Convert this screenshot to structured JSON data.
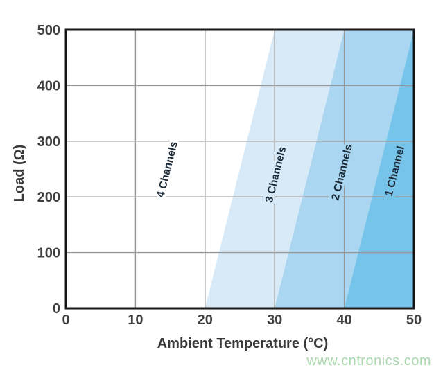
{
  "watermark": {
    "text": "www.cntronics.com",
    "color": "#a9d8ae"
  },
  "chart_data": {
    "type": "area",
    "title": "",
    "xlabel": "Ambient Temperature (°C)",
    "ylabel": "Load (Ω)",
    "xlim": [
      0,
      50
    ],
    "ylim": [
      0,
      500
    ],
    "xticks": [
      0,
      10,
      20,
      30,
      40,
      50
    ],
    "yticks": [
      0,
      100,
      200,
      300,
      400,
      500
    ],
    "grid": true,
    "legend_position": "none",
    "region_label_rotation_deg": -76,
    "regions": [
      {
        "label": "4 Channels",
        "fill": "#ffffff",
        "x_at_bottom": [
          0,
          20
        ],
        "x_at_top": [
          0,
          30
        ],
        "label_at": {
          "x": 14.6,
          "y": 249
        }
      },
      {
        "label": "3 Channels",
        "fill": "#d8eaf8",
        "x_at_bottom": [
          20,
          30
        ],
        "x_at_top": [
          30,
          40
        ],
        "label_at": {
          "x": 30.2,
          "y": 240
        }
      },
      {
        "label": "2 Channels",
        "fill": "#aad6f1",
        "x_at_bottom": [
          30,
          40
        ],
        "x_at_top": [
          40,
          50
        ],
        "label_at": {
          "x": 39.7,
          "y": 244
        }
      },
      {
        "label": "1 Channel",
        "fill": "#77c4ea",
        "x_at_bottom": [
          40,
          50
        ],
        "x_at_top": [
          50,
          50
        ],
        "label_at": {
          "x": 47.3,
          "y": 246
        }
      }
    ],
    "colors": {
      "grid": "#979797",
      "border": "#161616",
      "tick_labels": "#3f3f3f",
      "axis_titles": "#3a3a3a",
      "region_labels": "#1d2b38",
      "plot_background": "#ffffff"
    }
  }
}
